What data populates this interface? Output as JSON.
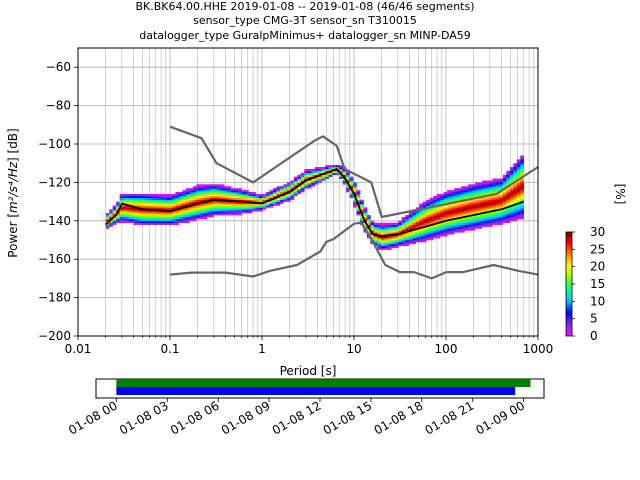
{
  "chart_data": {
    "type": "ppsd",
    "title_lines": [
      "BK.BK64.00.HHE   2019-01-08 -- 2019-01-08  (46/46 segments)",
      "sensor_type CMG-3T sensor_sn T310015",
      "datalogger_type GuralpMinimus+ datalogger_sn MINP-DA59"
    ],
    "xlabel": "Period [s]",
    "ylabel_main": "Power [",
    "ylabel_unit": "m²/s⁴/Hz",
    "ylabel_tail": "] [dB]",
    "xscale": "log",
    "xlim": [
      0.01,
      1000
    ],
    "ylim": [
      -200,
      -50
    ],
    "x_ticks": [
      0.01,
      0.1,
      1,
      10,
      100,
      1000
    ],
    "x_tick_labels": [
      "0.01",
      "0.1",
      "1",
      "10",
      "100",
      "1000"
    ],
    "y_ticks": [
      -200,
      -180,
      -160,
      -140,
      -120,
      -100,
      -80,
      -60
    ],
    "y_tick_labels": [
      "−200",
      "−180",
      "−160",
      "−140",
      "−120",
      "−100",
      "−80",
      "−60"
    ],
    "grid": true,
    "colorbar": {
      "label": "[%]",
      "range": [
        0,
        30
      ],
      "ticks": [
        0,
        5,
        10,
        15,
        20,
        25,
        30
      ],
      "tick_labels": [
        "0",
        "5",
        "10",
        "15",
        "20",
        "25",
        "30"
      ],
      "colormap": [
        "#ff00ff",
        "#8a2be2",
        "#0000ff",
        "#00bfff",
        "#00ffa0",
        "#7fff00",
        "#ffff00",
        "#ff8c00",
        "#ff0000",
        "#800000"
      ]
    },
    "series": [
      {
        "role": "new_high_noise_model",
        "color": "#666666",
        "points": [
          [
            0.1,
            -91
          ],
          [
            0.22,
            -97
          ],
          [
            0.32,
            -110
          ],
          [
            0.8,
            -120
          ],
          [
            3.8,
            -98
          ],
          [
            4.6,
            -96
          ],
          [
            6.5,
            -101
          ],
          [
            7.9,
            -113
          ],
          [
            15.4,
            -120
          ],
          [
            20,
            -138
          ],
          [
            354.8,
            -126
          ],
          [
            1000,
            -112
          ]
        ]
      },
      {
        "role": "new_low_noise_model",
        "color": "#666666",
        "points": [
          [
            0.1,
            -168
          ],
          [
            0.17,
            -167
          ],
          [
            0.4,
            -167
          ],
          [
            0.8,
            -169
          ],
          [
            1.24,
            -166
          ],
          [
            2.4,
            -163
          ],
          [
            4.3,
            -156
          ],
          [
            5,
            -151
          ],
          [
            6,
            -149.5
          ],
          [
            10,
            -141.5
          ],
          [
            12,
            -141
          ],
          [
            15.6,
            -150
          ],
          [
            21.9,
            -163
          ],
          [
            31.6,
            -166.7
          ],
          [
            45,
            -166.7
          ],
          [
            70,
            -170
          ],
          [
            101,
            -166.7
          ],
          [
            154,
            -166.7
          ],
          [
            328,
            -163
          ],
          [
            600,
            -166
          ],
          [
            1000,
            -168
          ]
        ]
      },
      {
        "role": "mean",
        "color": "#000000",
        "points": [
          [
            0.02,
            -142
          ],
          [
            0.026,
            -137
          ],
          [
            0.03,
            -131
          ],
          [
            0.05,
            -134
          ],
          [
            0.1,
            -135
          ],
          [
            0.2,
            -131
          ],
          [
            0.3,
            -129
          ],
          [
            0.6,
            -130
          ],
          [
            1,
            -131
          ],
          [
            2,
            -125
          ],
          [
            3,
            -119
          ],
          [
            5,
            -115
          ],
          [
            6.5,
            -113
          ],
          [
            8,
            -118
          ],
          [
            10,
            -126
          ],
          [
            13,
            -140
          ],
          [
            16,
            -147
          ],
          [
            20,
            -148
          ],
          [
            30,
            -147
          ],
          [
            60,
            -143
          ],
          [
            100,
            -140
          ],
          [
            200,
            -137
          ],
          [
            400,
            -134
          ],
          [
            700,
            -130
          ]
        ]
      }
    ],
    "density_band": {
      "x": [
        0.02,
        0.026,
        0.03,
        0.05,
        0.1,
        0.2,
        0.3,
        0.6,
        1,
        2,
        3,
        5,
        6.5,
        8,
        10,
        13,
        16,
        20,
        30,
        60,
        100,
        200,
        400,
        700
      ],
      "y_low": [
        -144,
        -141,
        -140,
        -142,
        -142,
        -139,
        -137,
        -136,
        -134,
        -129,
        -123,
        -118,
        -115,
        -121,
        -131,
        -145,
        -152,
        -155,
        -153,
        -150,
        -147,
        -144,
        -141,
        -138
      ],
      "y_high": [
        -137,
        -132,
        -126,
        -126,
        -127,
        -122,
        -121,
        -124,
        -127,
        -120,
        -114,
        -112,
        -111,
        -113,
        -119,
        -133,
        -141,
        -142,
        -141,
        -130,
        -125,
        -121,
        -118,
        -105
      ]
    },
    "timeline": {
      "tick_labels": [
        "01-08 00",
        "01-08 03",
        "01-08 06",
        "01-08 09",
        "01-08 12",
        "01-08 15",
        "01-08 18",
        "01-08 21",
        "01-09 00"
      ],
      "range_hours": [
        -1.2,
        25.2
      ],
      "bars": [
        {
          "color": "#008000",
          "start_hour": 0,
          "end_hour": 24.4
        },
        {
          "color": "#0000ff",
          "start_hour": 0,
          "end_hour": 23.5
        }
      ]
    }
  }
}
